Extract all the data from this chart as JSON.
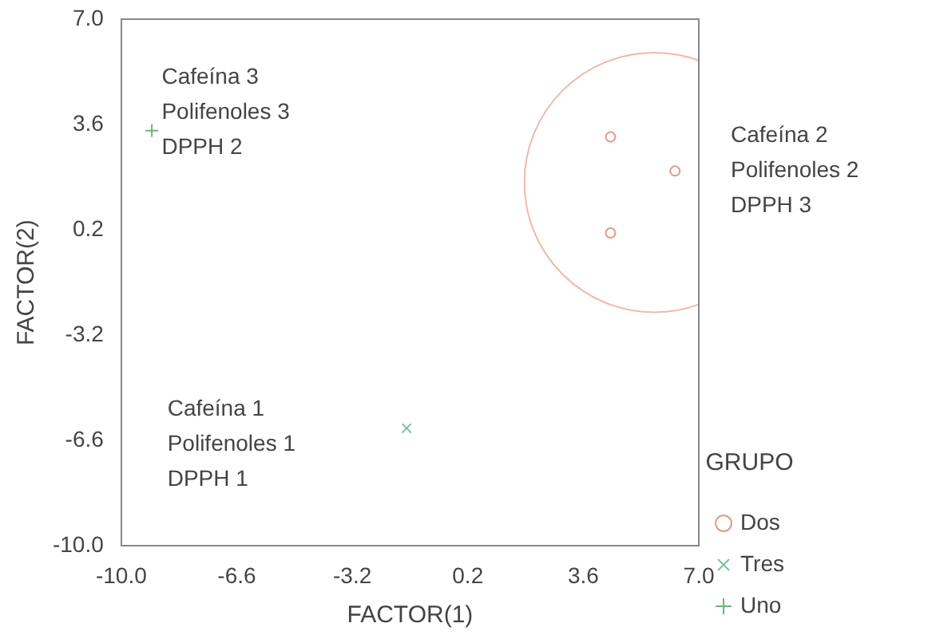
{
  "chart_data": {
    "type": "scatter",
    "xlabel": "FACTOR(1)",
    "ylabel": "FACTOR(2)",
    "legend_title": "GRUPO",
    "legend": "right",
    "grid": false,
    "xlim": [
      -10,
      7
    ],
    "ylim": [
      -10,
      7
    ],
    "xticks": [
      {
        "value": -10,
        "label": "-10.0"
      },
      -6.6,
      -3.2,
      0.2,
      3.6,
      {
        "value": 7,
        "label": "7.0"
      }
    ],
    "yticks": [
      {
        "value": -10,
        "label": "-10.0"
      },
      -6.6,
      -3.2,
      0.2,
      3.6,
      {
        "value": 7,
        "label": "7.0"
      }
    ],
    "series": [
      {
        "name": "Dos",
        "color": "#e09a88",
        "marker": "circle",
        "x": [
          4.4,
          6.3,
          4.4
        ],
        "values": [
          3.2,
          2.1,
          0.1
        ]
      },
      {
        "name": "Tres",
        "color": "#80c0a0",
        "marker": "cross",
        "x": [
          -1.6
        ],
        "values": [
          -6.2
        ]
      },
      {
        "name": "Uno",
        "color": "#70b080",
        "marker": "plus",
        "x": [
          -9.1
        ],
        "values": [
          3.4
        ]
      }
    ],
    "annotations": [
      "Cafeína 3\nPolifenoles 3\nDPPH 2",
      "Cafeína 2\nPolifenoles 2\nDPPH 3",
      "Cafeína 1\nPolifenoles 1\nDPPH 1"
    ]
  }
}
